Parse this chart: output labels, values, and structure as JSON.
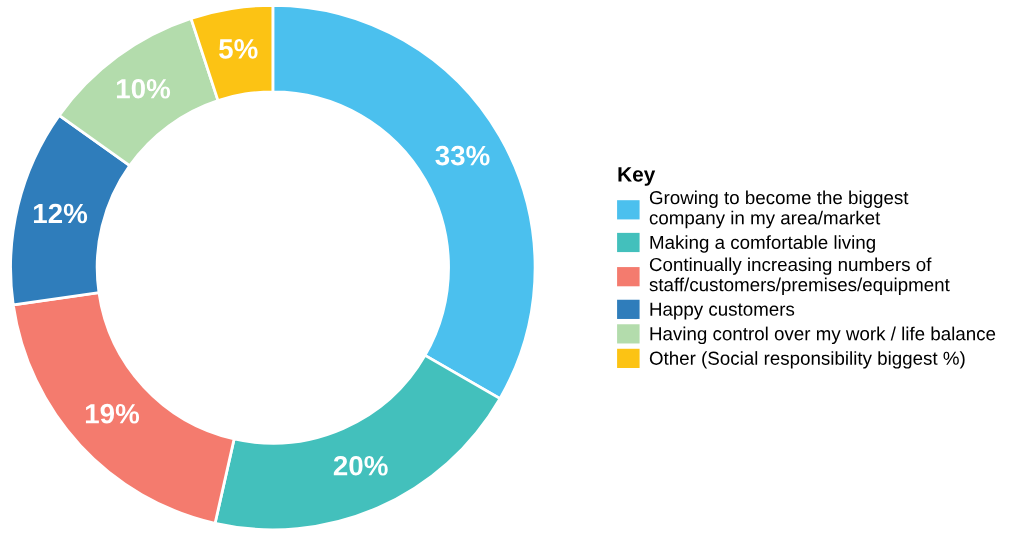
{
  "chart_data": {
    "type": "donut",
    "categories": [
      "Growing to become the biggest\ncompany in my area/market",
      "Making a comfortable living",
      "Continually increasing numbers of\nstaff/customers/premises/equipment",
      "Happy customers",
      "Having control over my work / life balance",
      "Other (Social responsibility biggest %)"
    ],
    "values": [
      33,
      20,
      19,
      12,
      10,
      5
    ],
    "value_labels": [
      "33%",
      "20%",
      "19%",
      "12%",
      "10%",
      "5%"
    ],
    "colors": [
      "#4bc0ee",
      "#43c0bc",
      "#f47b6e",
      "#2f7dbb",
      "#b3dcac",
      "#fcc314"
    ],
    "legend_title": "Key",
    "legend": "right"
  }
}
